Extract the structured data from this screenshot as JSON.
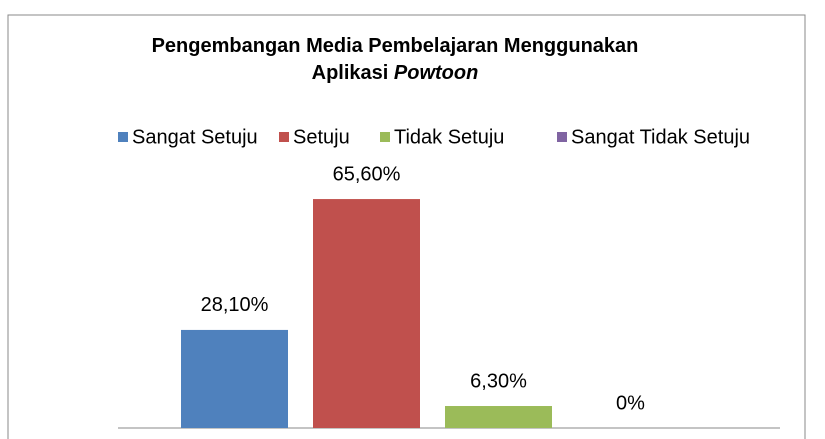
{
  "chart_data": {
    "type": "bar",
    "title": [
      "Pengembangan Media Pembelajaran Menggunakan",
      "Aplikasi",
      "Powtoon"
    ],
    "categories": [
      null
    ],
    "legend": "top",
    "series": [
      {
        "name": "Sangat Setuju",
        "color": "#4f81bd",
        "values": [
          28.1
        ],
        "value_labels": [
          "28,10%"
        ]
      },
      {
        "name": "Setuju",
        "color": "#c0504d",
        "values": [
          65.6
        ],
        "value_labels": [
          "65,60%"
        ]
      },
      {
        "name": "Tidak Setuju",
        "color": "#9bbb59",
        "values": [
          6.3
        ],
        "value_labels": [
          "6,30%"
        ]
      },
      {
        "name": "Sangat Tidak Setuju",
        "color": "#8064a2",
        "values": [
          0
        ],
        "value_labels": [
          "0%"
        ]
      }
    ]
  }
}
